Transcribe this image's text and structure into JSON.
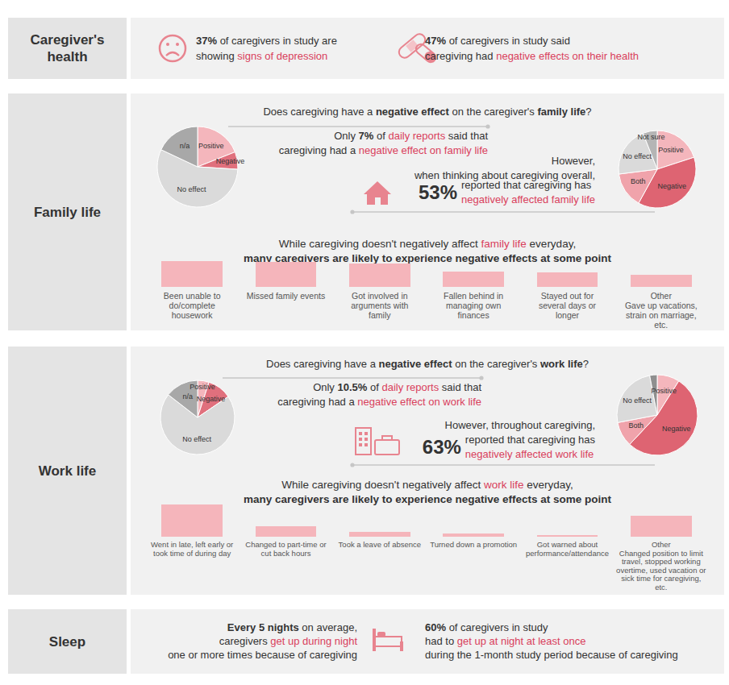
{
  "health": {
    "label": "Caregiver's health",
    "items": [
      [
        [
          {
            "text": "37%",
            "bold": true
          },
          {
            "text": " of caregivers in study are"
          }
        ],
        [
          {
            "text": "showing "
          },
          {
            "text": "signs of depression",
            "color": "#d9405c"
          }
        ]
      ],
      [
        [
          {
            "text": "47%",
            "bold": true
          },
          {
            "text": " of caregivers in study said"
          }
        ],
        [
          {
            "text": "caregiving had "
          },
          {
            "text": "negative effects on their health",
            "color": "#d9405c"
          }
        ]
      ]
    ]
  },
  "family": {
    "label": "Family life",
    "question": [
      {
        "text": "Does caregiving have a "
      },
      {
        "text": "negative effect",
        "bold": true
      },
      {
        "text": " on the caregiver's "
      },
      {
        "text": "family life",
        "bold": true
      },
      {
        "text": "?"
      }
    ],
    "daily_note": [
      [
        {
          "text": "Only "
        },
        {
          "text": "7%",
          "bold": true
        },
        {
          "text": " of "
        },
        {
          "text": "daily reports",
          "color": "#d9405c"
        },
        {
          "text": " said that"
        }
      ],
      [
        {
          "text": "caregiving had a "
        },
        {
          "text": "negative effect on family life",
          "color": "#d9405c"
        }
      ]
    ],
    "overall_note": {
      "lead": [
        [
          {
            "text": "However,"
          }
        ],
        [
          {
            "text": "when thinking about caregiving overall,"
          }
        ]
      ],
      "figure": "53%",
      "lines": [
        [
          {
            "text": "reported that caregiving has"
          }
        ],
        [
          {
            "text": "negatively affected family life",
            "color": "#d9405c"
          }
        ]
      ]
    },
    "summary": [
      [
        {
          "text": "While caregiving doesn't negatively affect "
        },
        {
          "text": "family life",
          "color": "#d9405c"
        },
        {
          "text": " everyday,"
        }
      ],
      [
        {
          "text": "many caregivers are likely to experience negative effects at some point",
          "bold": true
        }
      ]
    ]
  },
  "work": {
    "label": "Work life",
    "question": [
      {
        "text": "Does caregiving have a "
      },
      {
        "text": "negative effect",
        "bold": true
      },
      {
        "text": " on the caregiver's "
      },
      {
        "text": "work life",
        "bold": true
      },
      {
        "text": "?"
      }
    ],
    "daily_note": [
      [
        {
          "text": "Only "
        },
        {
          "text": "10.5%",
          "bold": true
        },
        {
          "text": " of "
        },
        {
          "text": "daily reports",
          "color": "#d9405c"
        },
        {
          "text": " said that"
        }
      ],
      [
        {
          "text": "caregiving had a "
        },
        {
          "text": "negative effect on work life",
          "color": "#d9405c"
        }
      ]
    ],
    "overall_note": {
      "lead": [
        [
          {
            "text": "However, throughout caregiving,"
          }
        ]
      ],
      "figure": "63%",
      "lines": [
        [
          {
            "text": "reported that caregiving has"
          }
        ],
        [
          {
            "text": "negatively affected work life",
            "color": "#d9405c"
          }
        ]
      ]
    },
    "summary": [
      [
        {
          "text": "While caregiving doesn't negatively affect "
        },
        {
          "text": "work life",
          "color": "#d9405c"
        },
        {
          "text": " everyday,"
        }
      ],
      [
        {
          "text": "many caregivers are likely to experience negative effects at some point",
          "bold": true
        }
      ]
    ]
  },
  "sleep": {
    "label": "Sleep",
    "left": [
      [
        {
          "text": "Every 5 nights",
          "bold": true
        },
        {
          "text": " on average,"
        }
      ],
      [
        {
          "text": "caregivers "
        },
        {
          "text": "get up during night",
          "color": "#d9405c"
        }
      ],
      [
        {
          "text": "one or more times because of caregiving"
        }
      ]
    ],
    "right": [
      [
        {
          "text": "60%",
          "bold": true
        },
        {
          "text": " of caregivers in study"
        }
      ],
      [
        {
          "text": "had to "
        },
        {
          "text": "get up at night at least once",
          "color": "#d9405c"
        }
      ],
      [
        {
          "text": "during the 1-month study period because of caregiving"
        }
      ]
    ]
  },
  "chart_data": [
    {
      "type": "pie",
      "categories": [
        "Positive",
        "Negative",
        "No effect",
        "n/a"
      ],
      "values": [
        19,
        7,
        56,
        18
      ],
      "colors": [
        "#f4b6bc",
        "#e0707d",
        "#dadada",
        "#a8a8a8"
      ]
    },
    {
      "type": "pie",
      "categories": [
        "Positive",
        "Negative",
        "Both",
        "No effect",
        "Not sure"
      ],
      "values": [
        20,
        38,
        15,
        21,
        6
      ],
      "colors": [
        "#f4b6bc",
        "#de6472",
        "#f0a3ab",
        "#dadada",
        "#b5b5b5"
      ]
    },
    {
      "type": "bar",
      "categories": [
        "Been unable to do/complete housework",
        "Missed family events",
        "Got involved in arguments with family",
        "Fallen behind in managing own finances",
        "Stayed out for several days or longer",
        "Other\nGave up vacations, strain on marriage, etc."
      ],
      "values": [
        32,
        31,
        29,
        19,
        18,
        15
      ],
      "color": "#f5b5bb",
      "ylim": [
        0,
        40
      ],
      "tick_labels": "x"
    },
    {
      "type": "pie",
      "categories": [
        "Positive",
        "Negative",
        "No effect",
        "n/a"
      ],
      "values": [
        5,
        10.5,
        70,
        14.5
      ],
      "colors": [
        "#f4b6bc",
        "#e0707d",
        "#dadada",
        "#a8a8a8"
      ]
    },
    {
      "type": "pie",
      "categories": [
        "Positive",
        "Negative",
        "Both",
        "No effect",
        null
      ],
      "values": [
        9,
        53,
        10,
        25,
        3
      ],
      "colors": [
        "#f4b6bc",
        "#de6472",
        "#f0a3ab",
        "#dadada",
        "#8f8f8f"
      ]
    },
    {
      "type": "bar",
      "categories": [
        "Went in late, left early or took time of during day",
        "Changed to part-time or cut back hours",
        "Took a leave of absence",
        "Turned down a promotion",
        "Got warned about performance/attendance",
        "Other\nChanged position to limit travel, stopped working overtime, used vacation or sick time for caregiving, etc."
      ],
      "values": [
        40,
        13,
        6,
        4,
        2,
        26
      ],
      "color": "#f5b5bb",
      "ylim": [
        0,
        40
      ],
      "tick_labels": "x"
    }
  ]
}
